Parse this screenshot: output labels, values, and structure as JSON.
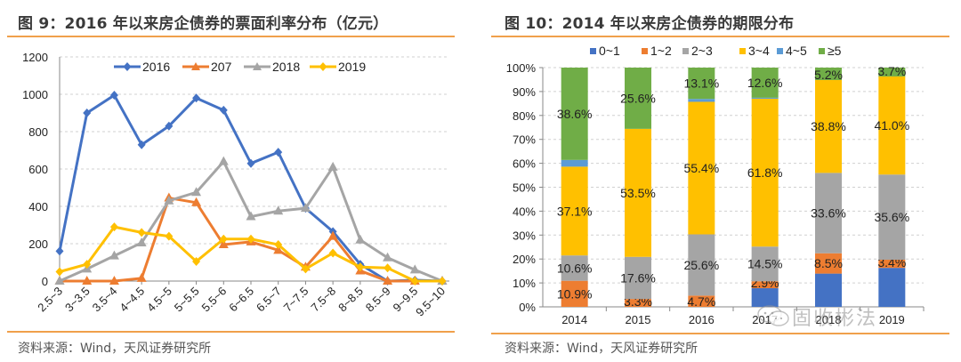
{
  "left_panel": {
    "title": "图 9：2016 年以来房企债券的票面利率分布（亿元）",
    "source": "资料来源：Wind，天风证券研究所"
  },
  "right_panel": {
    "title": "图 10：2014 年以来房企债券的期限分布",
    "source": "资料来源：Wind，天风证券研究所",
    "watermark": "固收彬法"
  },
  "colors": {
    "rule": "#f0a04b",
    "blue": "#4472c4",
    "orange": "#ed7d31",
    "gray": "#a5a5a5",
    "yellow": "#ffc000",
    "lightblue": "#5b9bd5",
    "green": "#70ad47"
  },
  "chart_data": [
    {
      "type": "line",
      "title": "2016 年以来房企债券的票面利率分布（亿元）",
      "xlabel": "",
      "ylabel": "",
      "categories": [
        "2.5~3",
        "3~3.5",
        "3.5~4",
        "4~4.5",
        "4.5~5",
        "5~5.5",
        "5.5~6",
        "6~6.5",
        "6.5~7",
        "7~7.5",
        "7.5~8",
        "8~8.5",
        "8.5~9",
        "9~9.5",
        "9.5~10"
      ],
      "ylim": [
        0,
        1200
      ],
      "yticks": [
        "0",
        "200",
        "400",
        "600",
        "800",
        "1000",
        "1200"
      ],
      "grid": true,
      "legend_position": "top",
      "series": [
        {
          "name": "2016",
          "color": "#4472c4",
          "marker": "diamond",
          "values": [
            160,
            900,
            995,
            730,
            830,
            980,
            915,
            630,
            690,
            390,
            265,
            90,
            0,
            5,
            0
          ]
        },
        {
          "name": "207",
          "color": "#ed7d31",
          "marker": "triangle",
          "values": [
            0,
            0,
            0,
            15,
            445,
            420,
            195,
            210,
            165,
            75,
            240,
            55,
            0,
            0,
            0
          ]
        },
        {
          "name": "2018",
          "color": "#a5a5a5",
          "marker": "triangle",
          "values": [
            0,
            65,
            135,
            205,
            430,
            475,
            640,
            345,
            375,
            390,
            610,
            220,
            125,
            60,
            0
          ]
        },
        {
          "name": "2019",
          "color": "#ffc000",
          "marker": "diamond",
          "values": [
            50,
            90,
            290,
            260,
            240,
            105,
            225,
            225,
            195,
            65,
            150,
            75,
            70,
            0,
            0
          ]
        }
      ]
    },
    {
      "type": "bar",
      "stacked": true,
      "title": "2014 年以来房企债券的期限分布",
      "xlabel": "",
      "ylabel": "",
      "categories": [
        "2014",
        "2015",
        "2016",
        "2017",
        "2018",
        "2019"
      ],
      "ylim": [
        0,
        100
      ],
      "yticks": [
        "0%",
        "10%",
        "20%",
        "30%",
        "40%",
        "50%",
        "60%",
        "70%",
        "80%",
        "90%",
        "100%"
      ],
      "grid": true,
      "legend_position": "top",
      "series": [
        {
          "name": "0~1",
          "color": "#4472c4",
          "values": [
            0,
            0,
            0,
            7.8,
            13.9,
            16.3
          ],
          "labels": [
            "",
            "",
            "",
            "",
            "",
            ""
          ]
        },
        {
          "name": "1~2",
          "color": "#ed7d31",
          "values": [
            10.9,
            3.3,
            4.7,
            2.9,
            8.5,
            3.4
          ],
          "labels": [
            "10.9%",
            "3.3%",
            "4.7%",
            "2.9%",
            "8.5%",
            "3.4%"
          ]
        },
        {
          "name": "2~3",
          "color": "#a5a5a5",
          "values": [
            10.6,
            17.6,
            25.6,
            14.5,
            33.6,
            35.6
          ],
          "labels": [
            "10.6%",
            "17.6%",
            "25.6%",
            "14.5%",
            "33.6%",
            "35.6%"
          ]
        },
        {
          "name": "3~4",
          "color": "#ffc000",
          "values": [
            37.1,
            53.5,
            55.4,
            61.8,
            38.8,
            41.0
          ],
          "labels": [
            "37.1%",
            "53.5%",
            "55.4%",
            "61.8%",
            "38.8%",
            "41.0%"
          ]
        },
        {
          "name": "4~5",
          "color": "#5b9bd5",
          "values": [
            2.8,
            0,
            1.2,
            0.4,
            0,
            0
          ],
          "labels": [
            "",
            "",
            "",
            "",
            "",
            ""
          ]
        },
        {
          "name": "≥5",
          "color": "#70ad47",
          "values": [
            38.6,
            25.6,
            13.1,
            12.6,
            5.2,
            3.7
          ],
          "labels": [
            "38.6%",
            "25.6%",
            "13.1%",
            "12.6%",
            "5.2%",
            "3.7%"
          ]
        }
      ]
    }
  ]
}
